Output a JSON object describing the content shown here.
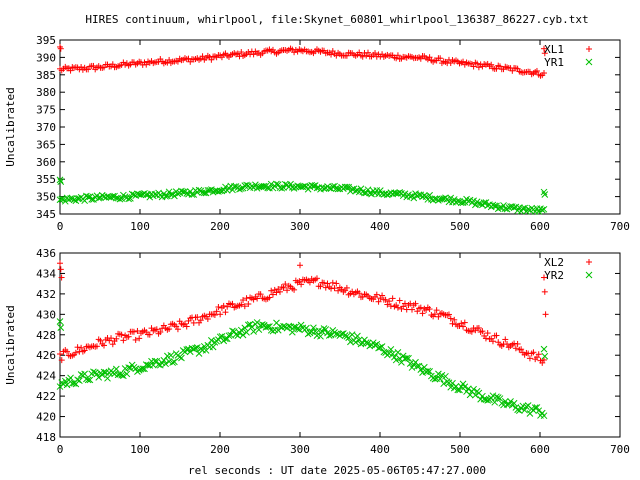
{
  "title": "HIRES continuum, whirlpool, file:Skynet_60801_whirlpool_136387_86227.cyb.txt",
  "xlabel": "rel seconds : UT date 2025-05-06T05:47:27.000",
  "colors": {
    "red": "#ff0000",
    "green": "#00c000",
    "axis": "#000000"
  },
  "chart_data": [
    {
      "type": "scatter",
      "ylabel": "Uncalibrated",
      "xlim": [
        0,
        700
      ],
      "ylim": [
        345,
        395
      ],
      "x_ticks": [
        "0",
        "100",
        "200",
        "300",
        "400",
        "500",
        "600",
        "700"
      ],
      "y_ticks": [
        "345",
        "350",
        "355",
        "360",
        "365",
        "370",
        "375",
        "380",
        "385",
        "390",
        "395"
      ],
      "legend": {
        "placement": "top-right",
        "entries": [
          {
            "label": "XL1",
            "marker": "+",
            "color": "#ff0000"
          },
          {
            "label": "YR1",
            "marker": "x",
            "color": "#00c000"
          }
        ]
      },
      "series": [
        {
          "name": "XL1",
          "marker": "+",
          "color": "#ff0000",
          "points": [
            [
              0,
              386.5
            ],
            [
              25,
              386.8
            ],
            [
              50,
              387.2
            ],
            [
              75,
              387.8
            ],
            [
              100,
              388.3
            ],
            [
              125,
              388.9
            ],
            [
              150,
              389.2
            ],
            [
              175,
              389.6
            ],
            [
              200,
              390.3
            ],
            [
              225,
              390.9
            ],
            [
              250,
              391.4
            ],
            [
              275,
              391.8
            ],
            [
              300,
              392.1
            ],
            [
              325,
              391.6
            ],
            [
              350,
              391.1
            ],
            [
              375,
              390.8
            ],
            [
              400,
              390.5
            ],
            [
              425,
              390.2
            ],
            [
              450,
              389.9
            ],
            [
              475,
              389.1
            ],
            [
              500,
              388.3
            ],
            [
              525,
              387.8
            ],
            [
              550,
              387.0
            ],
            [
              575,
              386.3
            ],
            [
              600,
              385.4
            ],
            [
              607,
              385.0
            ]
          ],
          "outliers": [
            [
              0,
              393
            ],
            [
              1,
              392.5
            ],
            [
              605,
              392.5
            ],
            [
              606,
              391.2
            ]
          ]
        },
        {
          "name": "YR1",
          "marker": "x",
          "color": "#00c000",
          "points": [
            [
              0,
              349.1
            ],
            [
              25,
              349.4
            ],
            [
              50,
              349.7
            ],
            [
              75,
              349.9
            ],
            [
              100,
              350.2
            ],
            [
              125,
              350.5
            ],
            [
              150,
              350.9
            ],
            [
              175,
              351.4
            ],
            [
              200,
              352.1
            ],
            [
              225,
              352.8
            ],
            [
              250,
              353.1
            ],
            [
              275,
              353.0
            ],
            [
              300,
              352.9
            ],
            [
              325,
              352.6
            ],
            [
              350,
              352.3
            ],
            [
              375,
              351.8
            ],
            [
              400,
              351.1
            ],
            [
              425,
              350.6
            ],
            [
              450,
              350.1
            ],
            [
              475,
              349.4
            ],
            [
              500,
              348.9
            ],
            [
              525,
              348.0
            ],
            [
              550,
              347.1
            ],
            [
              575,
              346.4
            ],
            [
              600,
              346.0
            ],
            [
              607,
              345.8
            ]
          ],
          "outliers": [
            [
              0,
              354.8
            ],
            [
              1,
              354.3
            ],
            [
              605,
              351.3
            ],
            [
              606,
              350.6
            ]
          ]
        }
      ]
    },
    {
      "type": "scatter",
      "ylabel": "Uncalibrated",
      "xlim": [
        0,
        700
      ],
      "ylim": [
        418,
        436
      ],
      "x_ticks": [
        "0",
        "100",
        "200",
        "300",
        "400",
        "500",
        "600",
        "700"
      ],
      "y_ticks": [
        "418",
        "420",
        "422",
        "424",
        "426",
        "428",
        "430",
        "432",
        "434",
        "436"
      ],
      "legend": {
        "placement": "top-right",
        "entries": [
          {
            "label": "XL2",
            "marker": "+",
            "color": "#ff0000"
          },
          {
            "label": "YR2",
            "marker": "x",
            "color": "#00c000"
          }
        ]
      },
      "series": [
        {
          "name": "XL2",
          "marker": "+",
          "color": "#ff0000",
          "points": [
            [
              0,
              425.9
            ],
            [
              25,
              426.5
            ],
            [
              50,
              427.2
            ],
            [
              75,
              427.7
            ],
            [
              100,
              428.0
            ],
            [
              125,
              428.4
            ],
            [
              150,
              428.9
            ],
            [
              175,
              429.6
            ],
            [
              200,
              430.4
            ],
            [
              225,
              431.0
            ],
            [
              250,
              431.6
            ],
            [
              275,
              432.4
            ],
            [
              300,
              433.0
            ],
            [
              325,
              433.2
            ],
            [
              350,
              432.6
            ],
            [
              375,
              432.0
            ],
            [
              400,
              431.5
            ],
            [
              425,
              431.0
            ],
            [
              450,
              430.6
            ],
            [
              475,
              430.0
            ],
            [
              500,
              429.2
            ],
            [
              525,
              428.3
            ],
            [
              550,
              427.4
            ],
            [
              575,
              426.6
            ],
            [
              600,
              425.6
            ],
            [
              607,
              425.2
            ]
          ],
          "outliers": [
            [
              0,
              435.0
            ],
            [
              1,
              434.4
            ],
            [
              2,
              433.6
            ],
            [
              300,
              434.8
            ],
            [
              605,
              433.6
            ],
            [
              606,
              432.2
            ],
            [
              607,
              430.0
            ]
          ]
        },
        {
          "name": "YR2",
          "marker": "x",
          "color": "#00c000",
          "points": [
            [
              0,
              423.2
            ],
            [
              25,
              423.7
            ],
            [
              50,
              424.1
            ],
            [
              75,
              424.3
            ],
            [
              100,
              424.9
            ],
            [
              125,
              425.4
            ],
            [
              150,
              425.9
            ],
            [
              175,
              426.6
            ],
            [
              200,
              427.4
            ],
            [
              225,
              428.3
            ],
            [
              250,
              428.9
            ],
            [
              275,
              428.7
            ],
            [
              300,
              428.6
            ],
            [
              325,
              428.3
            ],
            [
              350,
              428.0
            ],
            [
              375,
              427.4
            ],
            [
              400,
              426.7
            ],
            [
              425,
              425.8
            ],
            [
              450,
              424.7
            ],
            [
              475,
              423.8
            ],
            [
              500,
              422.9
            ],
            [
              525,
              422.1
            ],
            [
              550,
              421.4
            ],
            [
              575,
              420.9
            ],
            [
              600,
              420.5
            ],
            [
              607,
              420.3
            ]
          ],
          "outliers": [
            [
              0,
              429.3
            ],
            [
              1,
              428.7
            ],
            [
              605,
              426.6
            ],
            [
              606,
              425.9
            ]
          ]
        }
      ]
    }
  ]
}
